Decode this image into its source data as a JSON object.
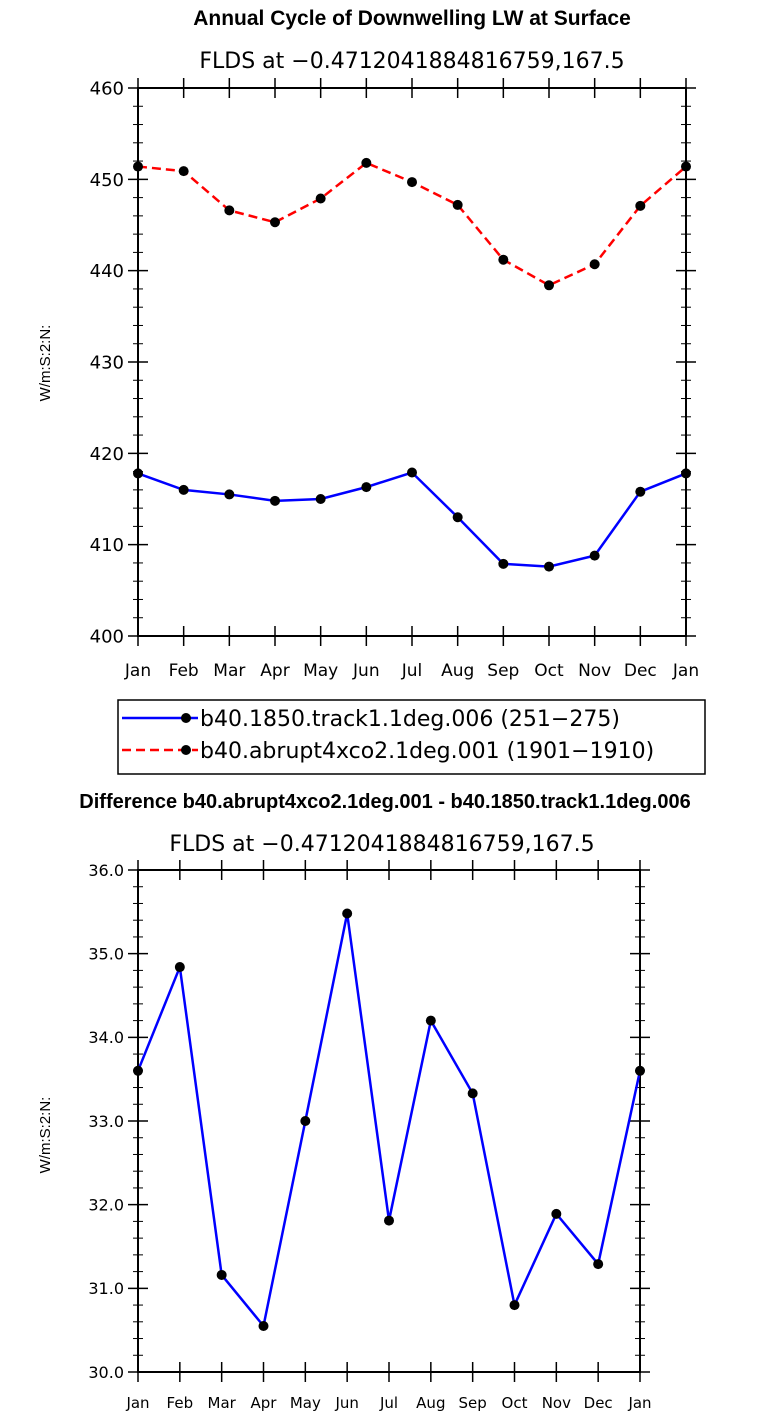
{
  "chart_data": [
    {
      "type": "line",
      "title": "Annual Cycle of Downwelling LW at Surface",
      "subtitle": "FLDS at −0.4712041884816759,167.5",
      "ylabel": "W/m:S:2:N:",
      "xlabel": "",
      "categories": [
        "Jan",
        "Feb",
        "Mar",
        "Apr",
        "May",
        "Jun",
        "Jul",
        "Aug",
        "Sep",
        "Oct",
        "Nov",
        "Dec",
        "Jan"
      ],
      "ylim": [
        400,
        460
      ],
      "ytick_labels": [
        "400",
        "410",
        "420",
        "430",
        "440",
        "450",
        "460"
      ],
      "series": [
        {
          "name": "b40.1850.track1.1deg.006 (251−275)",
          "color": "#0000ff",
          "dash": "solid",
          "values": [
            417.8,
            416.0,
            415.5,
            414.8,
            415.0,
            416.3,
            417.9,
            413.0,
            407.9,
            407.6,
            408.8,
            415.8,
            417.8
          ]
        },
        {
          "name": "b40.abrupt4xco2.1deg.001 (1901−1910)",
          "color": "#ff0000",
          "dash": "dashed",
          "values": [
            451.4,
            450.9,
            446.6,
            445.3,
            447.9,
            451.8,
            449.7,
            447.2,
            441.2,
            438.4,
            440.7,
            447.1,
            451.4
          ]
        }
      ],
      "legend_position": "bottom-center"
    },
    {
      "type": "line",
      "title": "Difference b40.abrupt4xco2.1deg.001 - b40.1850.track1.1deg.006",
      "subtitle": "FLDS at −0.4712041884816759,167.5",
      "ylabel": "W/m:S:2:N:",
      "xlabel": "",
      "categories": [
        "Jan",
        "Feb",
        "Mar",
        "Apr",
        "May",
        "Jun",
        "Jul",
        "Aug",
        "Sep",
        "Oct",
        "Nov",
        "Dec",
        "Jan"
      ],
      "ylim": [
        30.0,
        36.0
      ],
      "ytick_labels": [
        "30.0",
        "31.0",
        "32.0",
        "33.0",
        "34.0",
        "35.0",
        "36.0"
      ],
      "series": [
        {
          "name": "difference",
          "color": "#0000ff",
          "dash": "solid",
          "values": [
            33.6,
            34.84,
            31.16,
            30.55,
            33.0,
            35.48,
            31.81,
            34.2,
            33.33,
            30.8,
            31.89,
            31.29,
            33.6
          ]
        }
      ]
    }
  ]
}
